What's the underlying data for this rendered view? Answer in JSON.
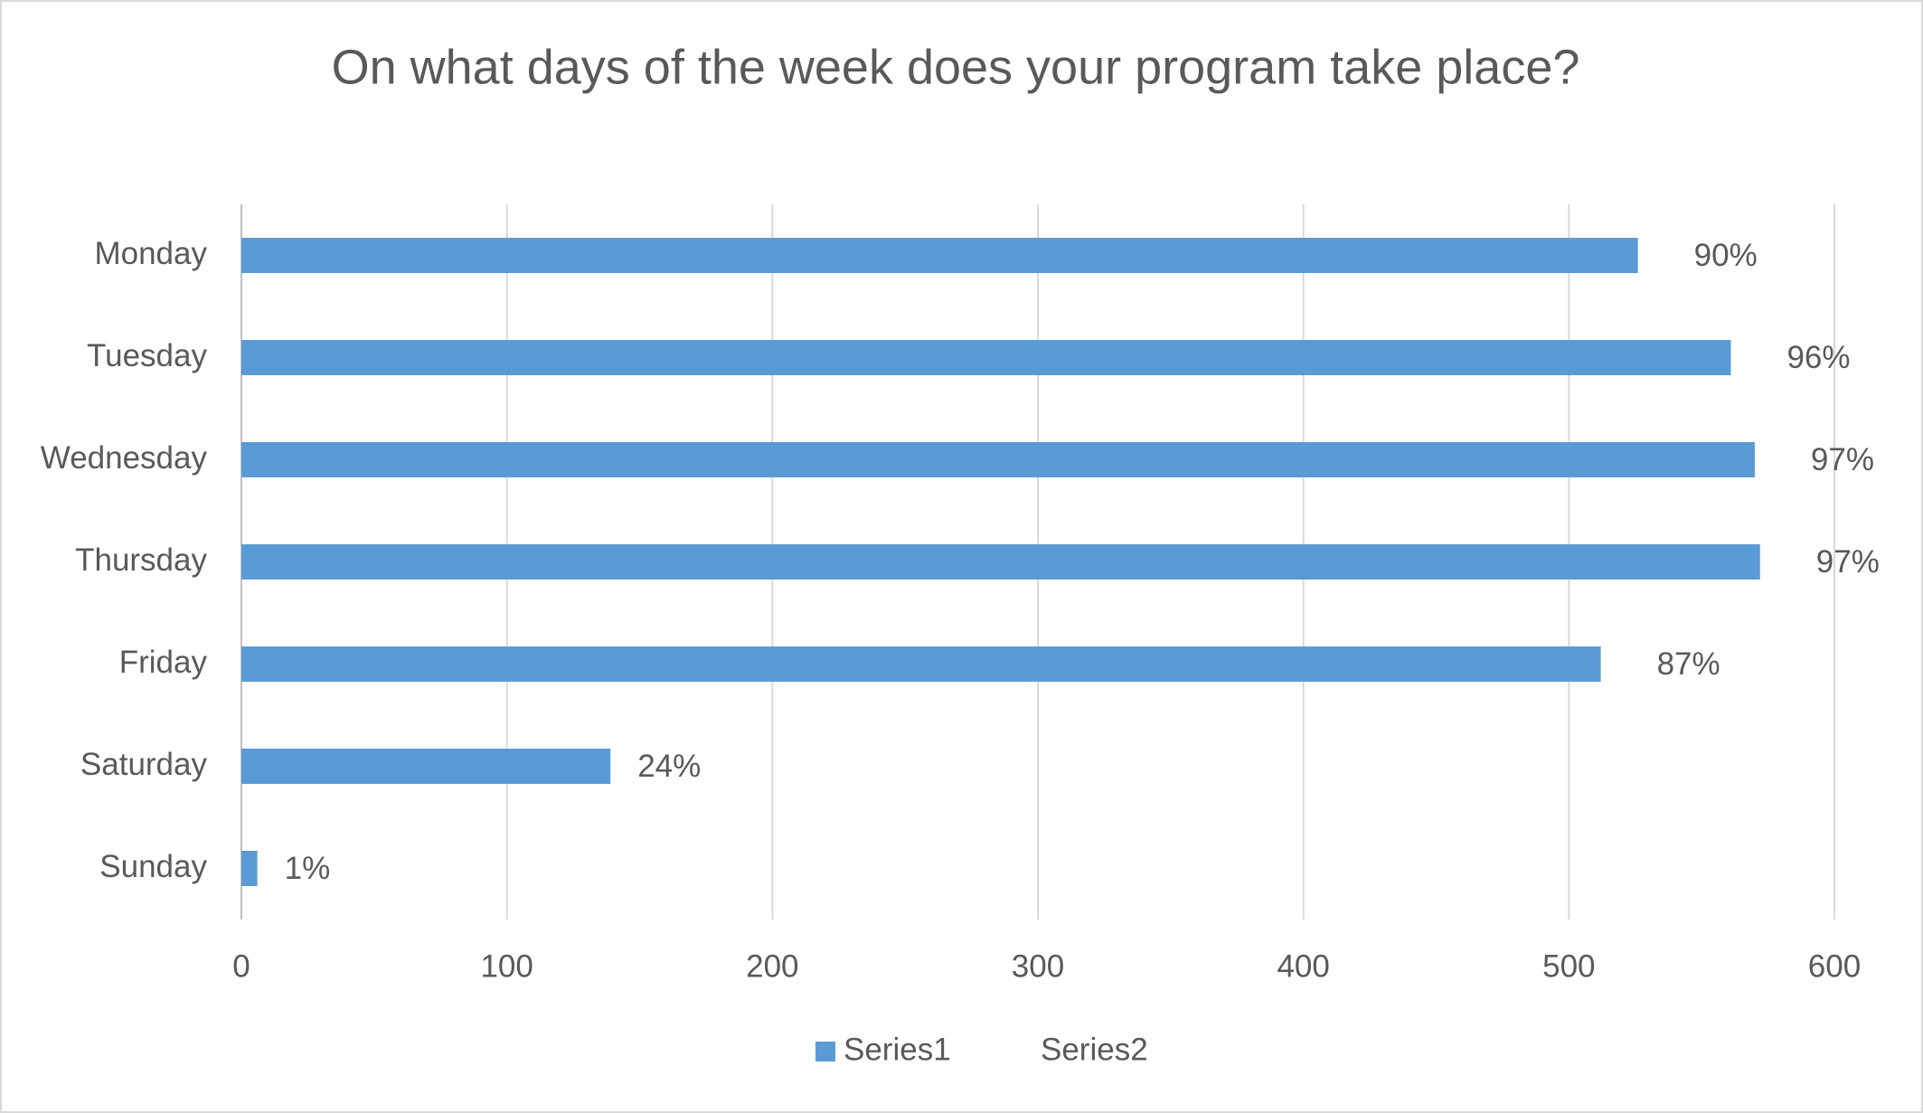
{
  "chart_data": {
    "type": "bar",
    "orientation": "horizontal",
    "title": "On what days of the week does your program take place?",
    "categories": [
      "Monday",
      "Tuesday",
      "Wednesday",
      "Thursday",
      "Friday",
      "Saturday",
      "Sunday"
    ],
    "series": [
      {
        "name": "Series1",
        "color": "#5b9bd5",
        "values": [
          526,
          561,
          570,
          572,
          512,
          139,
          6
        ]
      },
      {
        "name": "Series2",
        "color": "none",
        "values": [
          90,
          96,
          97,
          97,
          87,
          24,
          1
        ],
        "value_labels": [
          "90%",
          "96%",
          "97%",
          "97%",
          "87%",
          "24%",
          "1%"
        ]
      }
    ],
    "xlim": [
      0,
      600
    ],
    "xticks": [
      0,
      100,
      200,
      300,
      400,
      500,
      600
    ],
    "grid": true,
    "legend": "bottom"
  }
}
